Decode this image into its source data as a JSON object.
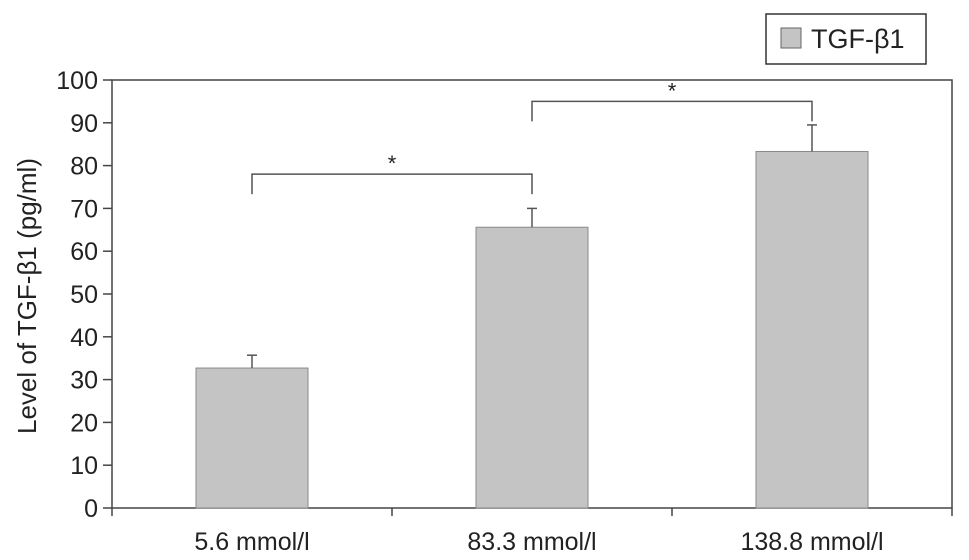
{
  "chart_data": {
    "type": "bar",
    "title": "",
    "xlabel": "",
    "ylabel": "Level of TGF-β1 (pg/ml)",
    "ylim": [
      0,
      100
    ],
    "yticks": [
      0,
      10,
      20,
      30,
      40,
      50,
      60,
      70,
      80,
      90,
      100
    ],
    "categories": [
      "5.6 mmol/l",
      "83.3 mmol/l",
      "138.8 mmol/l"
    ],
    "series": [
      {
        "name": "TGF-β1",
        "values": [
          32.7,
          65.6,
          83.3
        ],
        "errors": [
          3.0,
          4.4,
          6.2
        ],
        "color": "#c4c4c4"
      }
    ],
    "legend": {
      "position": "top-right",
      "entries": [
        "TGF-β1"
      ]
    },
    "grid": false,
    "annotations": [
      {
        "type": "significance",
        "from": 0,
        "to": 1,
        "label": "*",
        "y": 78
      },
      {
        "type": "significance",
        "from": 1,
        "to": 2,
        "label": "*",
        "y": 95
      }
    ]
  }
}
